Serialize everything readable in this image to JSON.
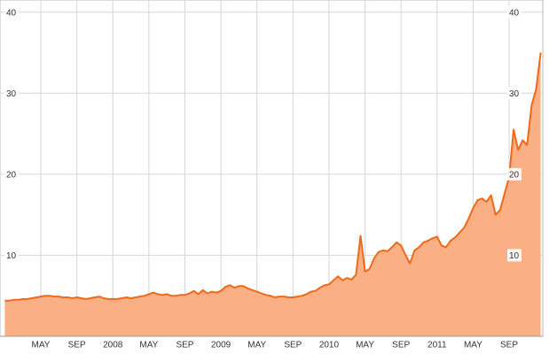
{
  "chart_data": {
    "type": "area",
    "categories": [
      null,
      null,
      null,
      null,
      null,
      null,
      null,
      null,
      "MAY",
      null,
      null,
      null,
      null,
      null,
      null,
      null,
      "SEP",
      null,
      null,
      null,
      null,
      null,
      null,
      null,
      "2008",
      null,
      null,
      null,
      null,
      null,
      null,
      null,
      "MAY",
      null,
      null,
      null,
      null,
      null,
      null,
      null,
      "SEP",
      null,
      null,
      null,
      null,
      null,
      null,
      null,
      "2009",
      null,
      null,
      null,
      null,
      null,
      null,
      null,
      "MAY",
      null,
      null,
      null,
      null,
      null,
      null,
      null,
      "SEP",
      null,
      null,
      null,
      null,
      null,
      null,
      null,
      "2010",
      null,
      null,
      null,
      null,
      null,
      null,
      null,
      "MAY",
      null,
      null,
      null,
      null,
      null,
      null,
      null,
      "SEP",
      null,
      null,
      null,
      null,
      null,
      null,
      null,
      "2011",
      null,
      null,
      null,
      null,
      null,
      null,
      null,
      "MAY",
      null,
      null,
      null,
      null,
      null,
      null,
      null,
      "SEP",
      null,
      null,
      null,
      null,
      null,
      null,
      null
    ],
    "values": [
      4.4,
      4.4,
      4.5,
      4.5,
      4.6,
      4.6,
      4.7,
      4.8,
      4.9,
      5.0,
      5.0,
      4.9,
      4.9,
      4.8,
      4.8,
      4.7,
      4.8,
      4.7,
      4.6,
      4.7,
      4.8,
      4.9,
      4.7,
      4.6,
      4.6,
      4.6,
      4.7,
      4.8,
      4.7,
      4.8,
      4.9,
      5.0,
      5.2,
      5.4,
      5.2,
      5.1,
      5.2,
      5.0,
      5.0,
      5.1,
      5.1,
      5.3,
      5.6,
      5.2,
      5.7,
      5.3,
      5.5,
      5.4,
      5.6,
      6.1,
      6.3,
      6.0,
      6.2,
      6.2,
      5.9,
      5.7,
      5.5,
      5.3,
      5.1,
      5.0,
      4.8,
      4.9,
      4.9,
      4.8,
      4.8,
      4.9,
      5.0,
      5.2,
      5.5,
      5.6,
      6.0,
      6.3,
      6.4,
      6.9,
      7.4,
      6.9,
      7.2,
      7.0,
      7.6,
      12.4,
      8.0,
      8.3,
      9.6,
      10.4,
      10.6,
      10.5,
      11.0,
      11.6,
      11.2,
      10.0,
      9.0,
      10.6,
      11.0,
      11.6,
      11.8,
      12.1,
      12.3,
      11.2,
      11.0,
      11.8,
      12.2,
      12.8,
      13.4,
      14.5,
      15.8,
      16.8,
      17.0,
      16.6,
      17.4,
      15.0,
      15.6,
      17.6,
      19.6,
      25.5,
      23.0,
      24.2,
      23.6,
      28.5,
      30.5,
      35.0
    ],
    "color": "#ee6a1a",
    "fill_color": "#fbaf85",
    "ylim": [
      0,
      41.5
    ],
    "yticks": [
      10,
      20,
      30,
      40
    ],
    "grid": true
  }
}
